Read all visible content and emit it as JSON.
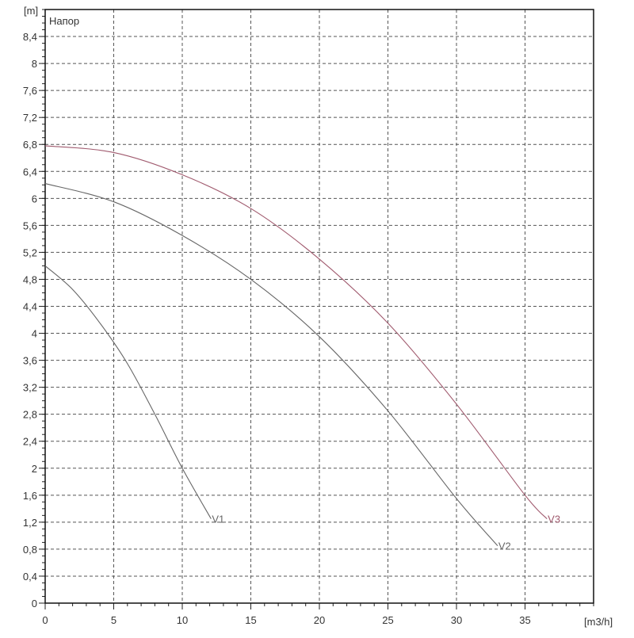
{
  "chart_data": {
    "type": "line",
    "title": "Напор",
    "xlabel": "[m3/h]",
    "ylabel": "[m]",
    "xlim": [
      0,
      40
    ],
    "ylim": [
      0,
      8.8
    ],
    "x_ticks": [
      0,
      5,
      10,
      15,
      20,
      25,
      30,
      35
    ],
    "y_ticks": [
      0,
      0.4,
      0.8,
      1.2,
      1.6,
      2,
      2.4,
      2.8,
      3.2,
      3.6,
      4,
      4.4,
      4.8,
      5.2,
      5.6,
      6,
      6.4,
      6.8,
      7.2,
      7.6,
      8,
      8.4
    ],
    "y_tick_labels": [
      "0",
      "0,4",
      "0,8",
      "1,2",
      "1,6",
      "2",
      "2,4",
      "2,8",
      "3,2",
      "3,6",
      "4",
      "4,4",
      "4,8",
      "5,2",
      "5,6",
      "6",
      "6,4",
      "6,8",
      "7,2",
      "7,6",
      "8",
      "8,4"
    ],
    "grid": true,
    "grid_style": "dashed",
    "series": [
      {
        "name": "V1",
        "color": "#666666",
        "x": [
          0,
          2,
          4,
          6,
          8,
          10,
          12.1
        ],
        "y": [
          5.0,
          4.65,
          4.15,
          3.55,
          2.8,
          2.0,
          1.25
        ]
      },
      {
        "name": "V2",
        "color": "#666666",
        "x": [
          0,
          5,
          10,
          15,
          20,
          25,
          30,
          33
        ],
        "y": [
          6.22,
          5.95,
          5.45,
          4.8,
          3.95,
          2.85,
          1.55,
          0.85
        ]
      },
      {
        "name": "V3",
        "color": "#a05a6e",
        "x": [
          0,
          5,
          10,
          15,
          20,
          25,
          30,
          35,
          36.6
        ],
        "y": [
          6.78,
          6.68,
          6.35,
          5.85,
          5.1,
          4.15,
          2.95,
          1.6,
          1.25
        ]
      }
    ]
  }
}
